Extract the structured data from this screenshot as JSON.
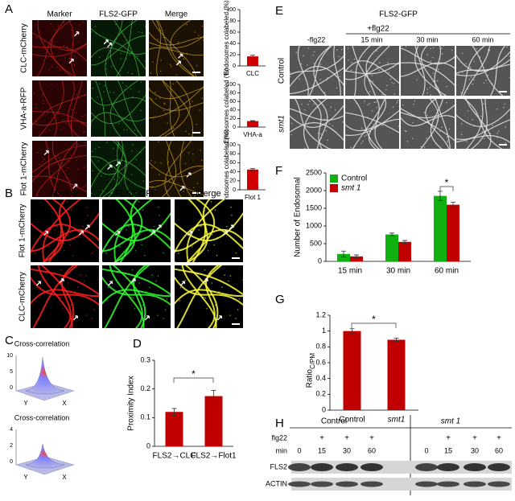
{
  "panel_labels": [
    "A",
    "B",
    "C",
    "D",
    "E",
    "F",
    "G",
    "H"
  ],
  "panel_a": {
    "columns": [
      "Marker",
      "FLS2-GFP",
      "Merge"
    ],
    "rows": [
      "CLC-mCherry",
      "VHA-a-RFP",
      "Flot 1-mCherry"
    ]
  },
  "panel_b": {
    "columns": [
      "Marker",
      "FLS2-GFP",
      "Merge"
    ],
    "rows": [
      "Flot 1-mCherry",
      "CLC-mCherry"
    ]
  },
  "panel_c": {
    "plots": [
      {
        "title": "Cross-correlation",
        "zticks": [
          10,
          5,
          0
        ],
        "y_label": "Y",
        "x_label": "X"
      },
      {
        "title": "Cross-correlation",
        "zticks": [
          4,
          2,
          0
        ],
        "y_label": "Y",
        "x_label": "X"
      }
    ]
  },
  "panel_e": {
    "title": "FLS2-GFP",
    "treatment": "+flg22",
    "columns": [
      "-flg22",
      "15 min",
      "30 min",
      "60 min"
    ],
    "rows": [
      "Control",
      "smt1"
    ]
  },
  "panel_h": {
    "groups": [
      "Control",
      "smt 1"
    ],
    "flg22_label": "flg22",
    "min_label": "min",
    "flg22": [
      null,
      "+",
      "+",
      "+",
      null,
      "+",
      "+",
      "+"
    ],
    "min": [
      0,
      15,
      30,
      60,
      0,
      15,
      30,
      60
    ],
    "bands": [
      "FLS2",
      "ACTIN"
    ]
  },
  "chart_data": [
    {
      "type": "bar",
      "y_label": "Endosomes colabeled (%)",
      "categories": [
        "CLC"
      ],
      "values": [
        17
      ],
      "errors": [
        2
      ],
      "color": "#d00000",
      "ylim": [
        0,
        100
      ],
      "yticks": [
        0,
        20,
        40,
        60,
        80,
        100
      ]
    },
    {
      "type": "bar",
      "y_label": "Endosomes colabeled (%)",
      "categories": [
        "VHA-a"
      ],
      "values": [
        14
      ],
      "errors": [
        1
      ],
      "color": "#d00000",
      "ylim": [
        0,
        100
      ],
      "yticks": [
        0,
        20,
        40,
        60,
        80,
        100
      ]
    },
    {
      "type": "bar",
      "y_label": "Endosomes colabeled (%)",
      "categories": [
        "Flot 1"
      ],
      "values": [
        45
      ],
      "errors": [
        2
      ],
      "color": "#d00000",
      "ylim": [
        0,
        100
      ],
      "yticks": [
        0,
        20,
        40,
        60,
        80,
        100
      ]
    },
    {
      "type": "bar",
      "y_label": "Proximity Index",
      "categories": [
        "FLS2→CLC",
        "FLS2→Flot1"
      ],
      "values": [
        0.12,
        0.175
      ],
      "errors": [
        0.012,
        0.02
      ],
      "color": "#c00000",
      "ylim": [
        0,
        0.3
      ],
      "yticks": [
        0,
        0.1,
        0.2,
        0.3
      ],
      "annotation": "*"
    },
    {
      "type": "bar",
      "y_label": "Number of Endosomal",
      "categories": [
        "15 min",
        "30 min",
        "60 min"
      ],
      "legend": "upper left",
      "series": [
        {
          "name": "Control",
          "color": "#10b010",
          "values": [
            210,
            760,
            1850
          ],
          "errors": [
            80,
            40,
            130
          ]
        },
        {
          "name": "smt 1",
          "color": "#c00000",
          "values": [
            140,
            550,
            1600
          ],
          "errors": [
            40,
            40,
            70
          ]
        }
      ],
      "ylim": [
        0,
        2500
      ],
      "yticks": [
        0,
        500,
        1000,
        1500,
        2000,
        2500
      ],
      "annotation": "*"
    },
    {
      "type": "bar",
      "y_label": "Ratio",
      "y_label_subscript": "C/PM",
      "categories": [
        "Control",
        "smt1"
      ],
      "values": [
        1.0,
        0.89
      ],
      "errors": [
        0.03,
        0.02
      ],
      "color": "#c00000",
      "ylim": [
        0,
        1.2
      ],
      "yticks": [
        0,
        0.2,
        0.4,
        0.6,
        0.8,
        1,
        1.2
      ],
      "annotation": "*"
    }
  ]
}
